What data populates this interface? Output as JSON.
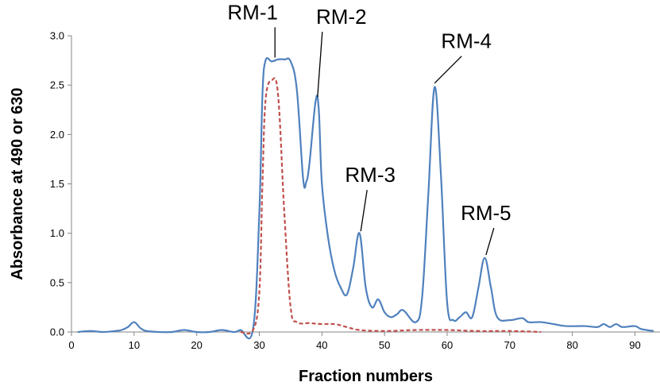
{
  "chart_data": {
    "type": "line",
    "xlabel": "Fraction numbers",
    "ylabel": "Absorbance at 490 or 630",
    "xlim": [
      0,
      94
    ],
    "ylim": [
      0,
      3.0
    ],
    "x_ticks": [
      "0",
      "10",
      "20",
      "30",
      "40",
      "50",
      "60",
      "70",
      "80",
      "90"
    ],
    "y_ticks": [
      "0.0",
      "0.5",
      "1.0",
      "1.5",
      "2.0",
      "2.5",
      "3.0"
    ],
    "grid": false,
    "colors": {
      "solid": "#4f81bd",
      "dashed": "#c0504d"
    },
    "series": [
      {
        "style": "solid",
        "points": [
          [
            1,
            0.0
          ],
          [
            3,
            0.01
          ],
          [
            5,
            0.0
          ],
          [
            7,
            0.01
          ],
          [
            8,
            0.02
          ],
          [
            9,
            0.05
          ],
          [
            10,
            0.1
          ],
          [
            11,
            0.04
          ],
          [
            12,
            0.01
          ],
          [
            14,
            0.0
          ],
          [
            16,
            0.0
          ],
          [
            18,
            0.02
          ],
          [
            20,
            0.0
          ],
          [
            22,
            0.0
          ],
          [
            24,
            0.02
          ],
          [
            26,
            0.0
          ],
          [
            27,
            0.02
          ],
          [
            29,
            0.03
          ],
          [
            30,
            1.2
          ],
          [
            30.5,
            2.4
          ],
          [
            31,
            2.75
          ],
          [
            32,
            2.74
          ],
          [
            33,
            2.76
          ],
          [
            34,
            2.76
          ],
          [
            35,
            2.74
          ],
          [
            36,
            2.45
          ],
          [
            37,
            1.55
          ],
          [
            37.5,
            1.52
          ],
          [
            38,
            1.7
          ],
          [
            39,
            2.34
          ],
          [
            39.5,
            2.25
          ],
          [
            40,
            1.5
          ],
          [
            41,
            0.95
          ],
          [
            42,
            0.62
          ],
          [
            43,
            0.45
          ],
          [
            44,
            0.38
          ],
          [
            45,
            0.65
          ],
          [
            46,
            1.0
          ],
          [
            47,
            0.45
          ],
          [
            48,
            0.25
          ],
          [
            49,
            0.33
          ],
          [
            50,
            0.2
          ],
          [
            51,
            0.15
          ],
          [
            52,
            0.18
          ],
          [
            53,
            0.22
          ],
          [
            55,
            0.1
          ],
          [
            56,
            0.35
          ],
          [
            57,
            1.4
          ],
          [
            58,
            2.48
          ],
          [
            59,
            1.6
          ],
          [
            60,
            0.3
          ],
          [
            61,
            0.12
          ],
          [
            62,
            0.15
          ],
          [
            63,
            0.2
          ],
          [
            64,
            0.15
          ],
          [
            65,
            0.45
          ],
          [
            66,
            0.75
          ],
          [
            67,
            0.45
          ],
          [
            68,
            0.15
          ],
          [
            70,
            0.12
          ],
          [
            72,
            0.14
          ],
          [
            73,
            0.1
          ],
          [
            75,
            0.1
          ],
          [
            77,
            0.08
          ],
          [
            79,
            0.06
          ],
          [
            82,
            0.06
          ],
          [
            84,
            0.05
          ],
          [
            85,
            0.08
          ],
          [
            86,
            0.05
          ],
          [
            87,
            0.08
          ],
          [
            88,
            0.05
          ],
          [
            90,
            0.06
          ],
          [
            91,
            0.03
          ],
          [
            93,
            0.01
          ]
        ]
      },
      {
        "style": "dashed",
        "points": [
          [
            27,
            0.0
          ],
          [
            29,
            0.02
          ],
          [
            30,
            0.4
          ],
          [
            30.5,
            1.5
          ],
          [
            31,
            2.35
          ],
          [
            32,
            2.55
          ],
          [
            33,
            2.4
          ],
          [
            34,
            1.2
          ],
          [
            35,
            0.25
          ],
          [
            36,
            0.1
          ],
          [
            38,
            0.09
          ],
          [
            40,
            0.08
          ],
          [
            42,
            0.08
          ],
          [
            44,
            0.05
          ],
          [
            46,
            0.02
          ],
          [
            50,
            0.01
          ],
          [
            55,
            0.02
          ],
          [
            60,
            0.02
          ],
          [
            65,
            0.01
          ],
          [
            70,
            0.01
          ],
          [
            75,
            0.0
          ]
        ]
      }
    ],
    "annotations": [
      {
        "text": "RM-1",
        "x": 32.5,
        "y": 2.78
      },
      {
        "text": "RM-2",
        "x": 39.3,
        "y": 2.38
      },
      {
        "text": "RM-3",
        "x": 46.2,
        "y": 1.02
      },
      {
        "text": "RM-4",
        "x": 58,
        "y": 2.52
      },
      {
        "text": "RM-5",
        "x": 66.2,
        "y": 0.78
      }
    ]
  }
}
